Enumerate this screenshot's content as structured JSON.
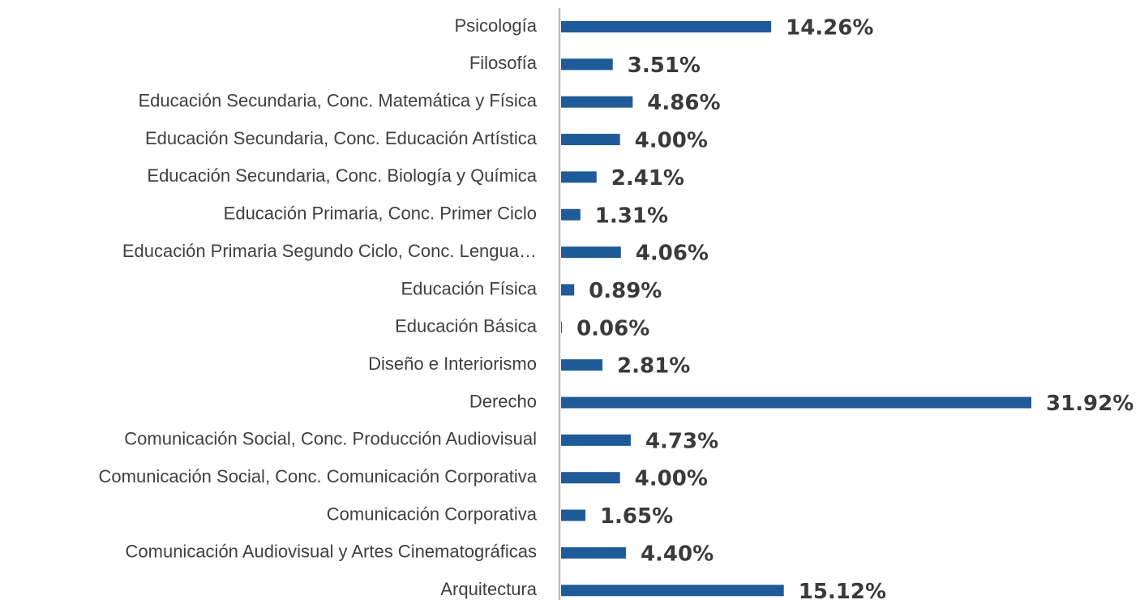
{
  "chart_data": {
    "type": "hbar",
    "categories": [
      "Psicología",
      "Filosofía",
      "Educación Secundaria, Conc. Matemática y Física",
      "Educación Secundaria, Conc. Educación Artística",
      "Educación Secundaria, Conc. Biología y Química",
      "Educación Primaria, Conc. Primer Ciclo",
      "Educación Primaria Segundo Ciclo, Conc. Lengua…",
      "Educación Física",
      "Educación Básica",
      "Diseño e Interiorismo",
      "Derecho",
      "Comunicación Social, Conc. Producción Audiovisual",
      "Comunicación Social, Conc. Comunicación Corporativa",
      "Comunicación Corporativa",
      "Comunicación Audiovisual y Artes Cinematográficas",
      "Arquitectura"
    ],
    "values": [
      14.26,
      3.51,
      4.86,
      4.0,
      2.41,
      1.31,
      4.06,
      0.89,
      0.06,
      2.81,
      31.92,
      4.73,
      4.0,
      1.65,
      4.4,
      15.12
    ],
    "value_labels": [
      "14.26%",
      "3.51%",
      "4.86%",
      "4.00%",
      "2.41%",
      "1.31%",
      "4.06%",
      "0.89%",
      "0.06%",
      "2.81%",
      "31.92%",
      "4.73%",
      "4.00%",
      "1.65%",
      "4.40%",
      "15.12%"
    ],
    "color": "#1f5b98"
  }
}
